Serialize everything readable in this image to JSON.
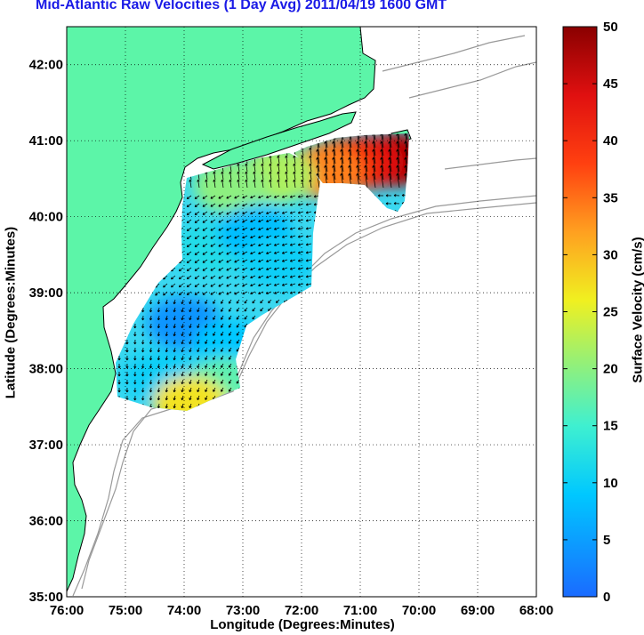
{
  "title": "Mid-Atlantic Raw Velocities (1 Day Avg) 2011/04/19 1600 GMT",
  "xlabel": "Longitude (Degrees:Minutes)",
  "ylabel": "Latitude (Degrees:Minutes)",
  "colorbar_label": "Surface Velocity (cm/s)",
  "colors": {
    "land": "#5cf5a8",
    "title": "#1a1ae6"
  },
  "chart_data": {
    "type": "heatmap",
    "x_range": [
      -76,
      -68
    ],
    "y_range": [
      35,
      42.5
    ],
    "x_ticks": [
      {
        "value": -76,
        "label": "76:00"
      },
      {
        "value": -75,
        "label": "75:00"
      },
      {
        "value": -74,
        "label": "74:00"
      },
      {
        "value": -73,
        "label": "73:00"
      },
      {
        "value": -72,
        "label": "72:00"
      },
      {
        "value": -71,
        "label": "71:00"
      },
      {
        "value": -70,
        "label": "70:00"
      },
      {
        "value": -69,
        "label": "69:00"
      },
      {
        "value": -68,
        "label": "68:00"
      }
    ],
    "y_ticks": [
      {
        "value": 35,
        "label": "35:00"
      },
      {
        "value": 36,
        "label": "36:00"
      },
      {
        "value": 37,
        "label": "37:00"
      },
      {
        "value": 38,
        "label": "38:00"
      },
      {
        "value": 39,
        "label": "39:00"
      },
      {
        "value": 40,
        "label": "40:00"
      },
      {
        "value": 41,
        "label": "41:00"
      },
      {
        "value": 42,
        "label": "42:00"
      }
    ],
    "grid": true,
    "colorbar": {
      "min": 0,
      "max": 50,
      "units": "cm/s",
      "ticks": [
        {
          "value": 0,
          "label": "0"
        },
        {
          "value": 5,
          "label": "5"
        },
        {
          "value": 10,
          "label": "10"
        },
        {
          "value": 15,
          "label": "15"
        },
        {
          "value": 20,
          "label": "20"
        },
        {
          "value": 25,
          "label": "25"
        },
        {
          "value": 30,
          "label": "30"
        },
        {
          "value": 35,
          "label": "35"
        },
        {
          "value": 40,
          "label": "40"
        },
        {
          "value": 45,
          "label": "45"
        },
        {
          "value": 50,
          "label": "50"
        }
      ]
    },
    "velocity_regions": [
      {
        "lon": -70.4,
        "lat": 40.75,
        "speed": 48
      },
      {
        "lon": -70.9,
        "lat": 40.72,
        "speed": 44
      },
      {
        "lon": -71.3,
        "lat": 40.68,
        "speed": 40
      },
      {
        "lon": -71.6,
        "lat": 40.6,
        "speed": 34
      },
      {
        "lon": -72.4,
        "lat": 40.55,
        "speed": 22
      },
      {
        "lon": -73.2,
        "lat": 40.4,
        "speed": 20
      },
      {
        "lon": -73.5,
        "lat": 39.6,
        "speed": 12
      },
      {
        "lon": -72.8,
        "lat": 39.8,
        "speed": 8
      },
      {
        "lon": -72.4,
        "lat": 39.4,
        "speed": 10
      },
      {
        "lon": -74.0,
        "lat": 38.6,
        "speed": 4
      },
      {
        "lon": -73.2,
        "lat": 38.3,
        "speed": 9
      },
      {
        "lon": -74.4,
        "lat": 37.9,
        "speed": 10
      },
      {
        "lon": -73.3,
        "lat": 37.8,
        "speed": 17
      },
      {
        "lon": -73.9,
        "lat": 37.55,
        "speed": 27
      }
    ]
  }
}
